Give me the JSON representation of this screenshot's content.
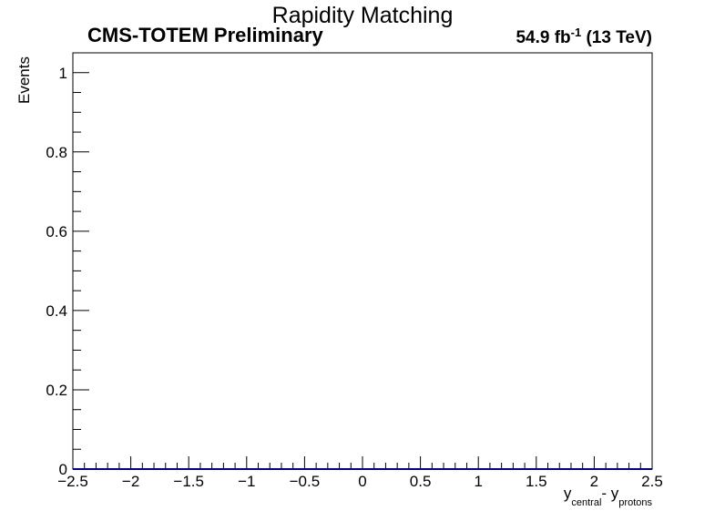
{
  "chart_data": {
    "type": "line",
    "title": "Rapidity Matching",
    "experiment_label": "CMS-TOTEM Preliminary",
    "lumi_value": "54.9 fb",
    "lumi_exponent": "-1",
    "energy_label": "(13 TeV)",
    "xlabel_main": "y",
    "xlabel_sub1": "central",
    "xlabel_mid": "- y",
    "xlabel_sub2": "protons",
    "ylabel": "Events",
    "xlim": [
      -2.5,
      2.5
    ],
    "ylim": [
      0,
      1.05
    ],
    "x_ticks": [
      -2.5,
      -2,
      -1.5,
      -1,
      -0.5,
      0,
      0.5,
      1,
      1.5,
      2,
      2.5
    ],
    "x_tick_labels": [
      "−2.5",
      "−2",
      "−1.5",
      "−1",
      "−0.5",
      "0",
      "0.5",
      "1",
      "1.5",
      "2",
      "2.5"
    ],
    "y_ticks": [
      0,
      0.2,
      0.4,
      0.6,
      0.8,
      1
    ],
    "y_tick_labels": [
      "0",
      "0.2",
      "0.4",
      "0.6",
      "0.8",
      "1"
    ],
    "series": [
      {
        "x": [
          -2.5,
          2.5
        ],
        "values": [
          0,
          0
        ],
        "color": "#000080"
      }
    ],
    "grid": false,
    "legend": "none"
  }
}
